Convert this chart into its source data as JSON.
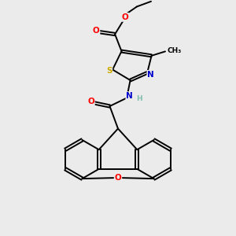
{
  "background_color": "#ebebeb",
  "atom_colors": {
    "C": "#000000",
    "N": "#0000cc",
    "O": "#ff0000",
    "S": "#ccaa00",
    "H": "#7fbfaf"
  },
  "bond_color": "#000000",
  "figsize": [
    3.0,
    3.0
  ],
  "dpi": 100,
  "bond_lw": 1.4,
  "font_size": 7.5
}
